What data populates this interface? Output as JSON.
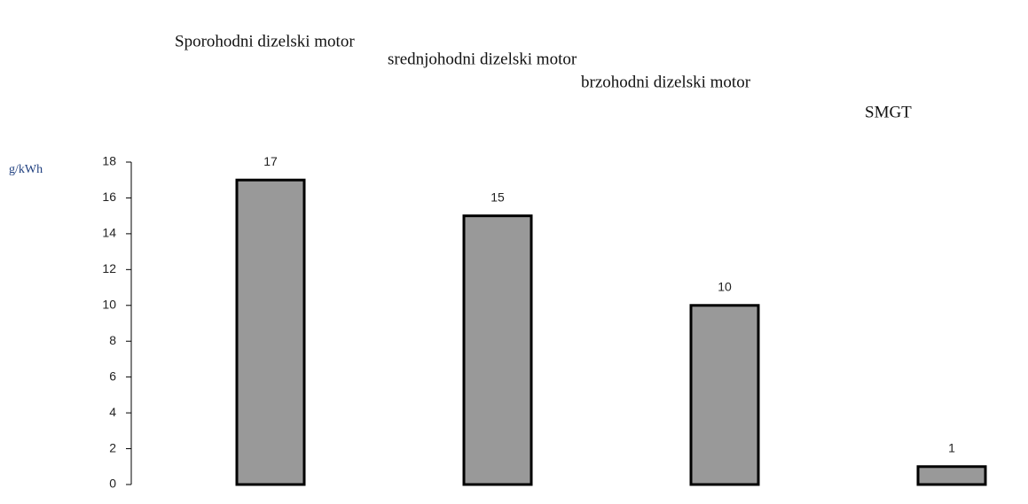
{
  "chart_data": {
    "type": "bar",
    "categories": [
      "Sporohodni dizelski motor",
      "srednjohodni dizelski motor",
      "brzohodni dizelski motor",
      "SMGT"
    ],
    "values": [
      17,
      15,
      10,
      1
    ],
    "color": "#999999",
    "ylabel": "g/kWh",
    "ylim": [
      0,
      18
    ],
    "yticks": [
      0,
      2,
      4,
      6,
      8,
      10,
      12,
      14,
      16,
      18
    ],
    "grid": false
  }
}
